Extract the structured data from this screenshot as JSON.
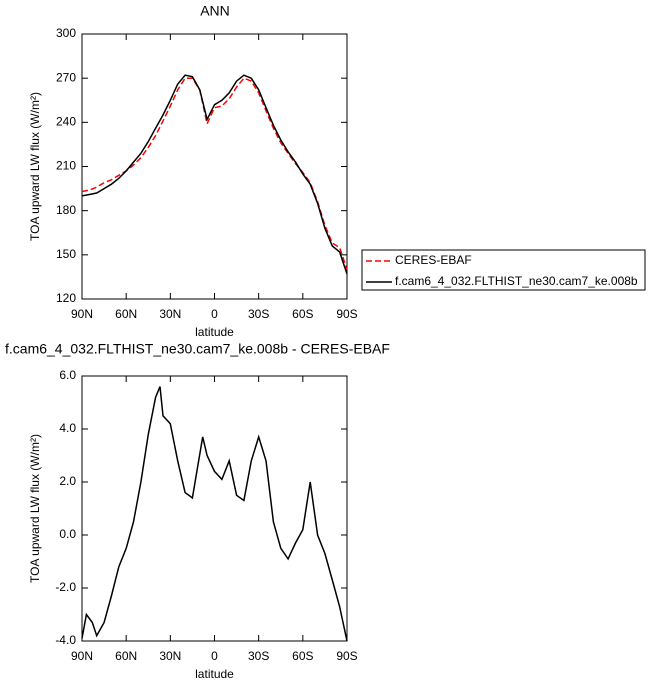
{
  "chart_data": [
    {
      "type": "line",
      "title": "ANN",
      "xlabel": "latitude",
      "ylabel": "TOA upward LW flux (W/m²)",
      "x": [
        90,
        85,
        80,
        75,
        70,
        65,
        60,
        55,
        50,
        45,
        40,
        35,
        30,
        25,
        20,
        15,
        10,
        5,
        0,
        -5,
        -10,
        -15,
        -20,
        -25,
        -30,
        -35,
        -40,
        -45,
        -50,
        -55,
        -60,
        -65,
        -70,
        -75,
        -80,
        -85,
        -90
      ],
      "xlim": [
        90,
        -90
      ],
      "xticks": [
        {
          "value": 90,
          "label": "90N"
        },
        {
          "value": 60,
          "label": "60N"
        },
        {
          "value": 30,
          "label": "30N"
        },
        0,
        {
          "value": -30,
          "label": "30S"
        },
        {
          "value": -60,
          "label": "60S"
        },
        {
          "value": -90,
          "label": "90S"
        }
      ],
      "ylim": [
        120,
        300
      ],
      "yticks": [
        120,
        150,
        180,
        210,
        240,
        270,
        300
      ],
      "series": [
        {
          "name": "CERES-EBAF",
          "color": "#ff0000",
          "style": "dashed",
          "values": [
            193,
            194,
            196,
            199,
            201,
            204,
            207,
            211,
            216,
            223,
            231,
            241,
            251,
            262,
            270,
            270,
            262,
            239,
            250,
            251,
            256,
            264,
            270,
            268,
            260,
            248,
            236,
            226,
            219,
            212,
            206,
            199,
            186,
            170,
            158,
            155,
            140
          ]
        },
        {
          "name": "f.cam6_4_032.FLTHIST_ne30.cam7_ke.008b",
          "color": "#000000",
          "style": "solid",
          "values": [
            190,
            191,
            192,
            195,
            198,
            202,
            207,
            213,
            219,
            227,
            236,
            245,
            255,
            266,
            272,
            271,
            262,
            242,
            252,
            255,
            260,
            268,
            272,
            270,
            262,
            250,
            238,
            228,
            220,
            213,
            205,
            198,
            185,
            168,
            156,
            152,
            137
          ]
        }
      ]
    },
    {
      "type": "line",
      "title": "f.cam6_4_032.FLTHIST_ne30.cam7_ke.008b - CERES-EBAF",
      "xlabel": "latitude",
      "ylabel": "TOA upward LW flux (W/m²)",
      "x": [
        90,
        87,
        83,
        80,
        75,
        70,
        65,
        60,
        55,
        50,
        45,
        40,
        37,
        35,
        30,
        25,
        20,
        15,
        8,
        5,
        0,
        -5,
        -10,
        -15,
        -20,
        -25,
        -30,
        -35,
        -40,
        -45,
        -50,
        -55,
        -60,
        -65,
        -70,
        -75,
        -80,
        -85,
        -90
      ],
      "xlim": [
        90,
        -90
      ],
      "xticks": [
        {
          "value": 90,
          "label": "90N"
        },
        {
          "value": 60,
          "label": "60N"
        },
        {
          "value": 30,
          "label": "30N"
        },
        0,
        {
          "value": -30,
          "label": "30S"
        },
        {
          "value": -60,
          "label": "60S"
        },
        {
          "value": -90,
          "label": "90S"
        }
      ],
      "ylim": [
        -4,
        6
      ],
      "yticks": [
        {
          "value": -4,
          "label": "-4.0"
        },
        {
          "value": -2,
          "label": "-2.0"
        },
        {
          "value": 0,
          "label": "0.0"
        },
        {
          "value": 2,
          "label": "2.0"
        },
        {
          "value": 4,
          "label": "4.0"
        },
        {
          "value": 6,
          "label": "6.0"
        }
      ],
      "color": "#000000",
      "values": [
        -3.9,
        -3.0,
        -3.3,
        -3.8,
        -3.3,
        -2.3,
        -1.2,
        -0.5,
        0.5,
        2.0,
        3.8,
        5.2,
        5.6,
        4.5,
        4.2,
        2.8,
        1.6,
        1.4,
        3.7,
        3.0,
        2.4,
        2.1,
        2.8,
        1.5,
        1.3,
        2.8,
        3.7,
        2.8,
        0.5,
        -0.5,
        -0.9,
        -0.3,
        0.2,
        2.0,
        0.0,
        -0.7,
        -1.7,
        -2.7,
        -4.0
      ]
    }
  ]
}
